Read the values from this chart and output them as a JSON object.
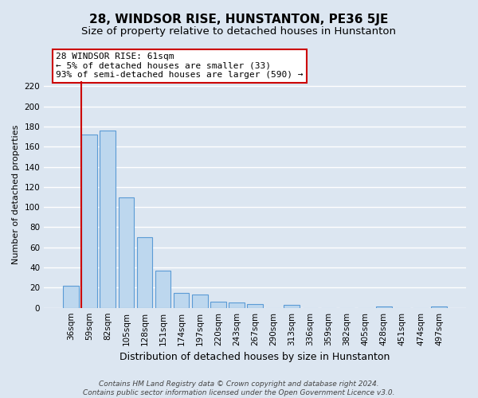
{
  "title": "28, WINDSOR RISE, HUNSTANTON, PE36 5JE",
  "subtitle": "Size of property relative to detached houses in Hunstanton",
  "bar_labels": [
    "36sqm",
    "59sqm",
    "82sqm",
    "105sqm",
    "128sqm",
    "151sqm",
    "174sqm",
    "197sqm",
    "220sqm",
    "243sqm",
    "267sqm",
    "290sqm",
    "313sqm",
    "336sqm",
    "359sqm",
    "382sqm",
    "405sqm",
    "428sqm",
    "451sqm",
    "474sqm",
    "497sqm"
  ],
  "bar_values": [
    22,
    172,
    176,
    110,
    70,
    37,
    15,
    13,
    6,
    5,
    4,
    0,
    3,
    0,
    0,
    0,
    0,
    1,
    0,
    0,
    1
  ],
  "bar_color": "#bdd7ee",
  "bar_edge_color": "#5b9bd5",
  "vline_color": "#cc0000",
  "vline_x_index": 1,
  "annotation_text": "28 WINDSOR RISE: 61sqm\n← 5% of detached houses are smaller (33)\n93% of semi-detached houses are larger (590) →",
  "annotation_box_color": "#ffffff",
  "annotation_box_edge": "#cc0000",
  "xlabel": "Distribution of detached houses by size in Hunstanton",
  "ylabel": "Number of detached properties",
  "ylim": [
    0,
    225
  ],
  "yticks": [
    0,
    20,
    40,
    60,
    80,
    100,
    120,
    140,
    160,
    180,
    200,
    220
  ],
  "footer1": "Contains HM Land Registry data © Crown copyright and database right 2024.",
  "footer2": "Contains public sector information licensed under the Open Government Licence v3.0.",
  "bg_color": "#dce6f1",
  "plot_bg_color": "#dce6f1",
  "grid_color": "#ffffff",
  "title_fontsize": 11,
  "subtitle_fontsize": 9.5,
  "xlabel_fontsize": 9,
  "ylabel_fontsize": 8,
  "tick_fontsize": 7.5,
  "footer_fontsize": 6.5
}
